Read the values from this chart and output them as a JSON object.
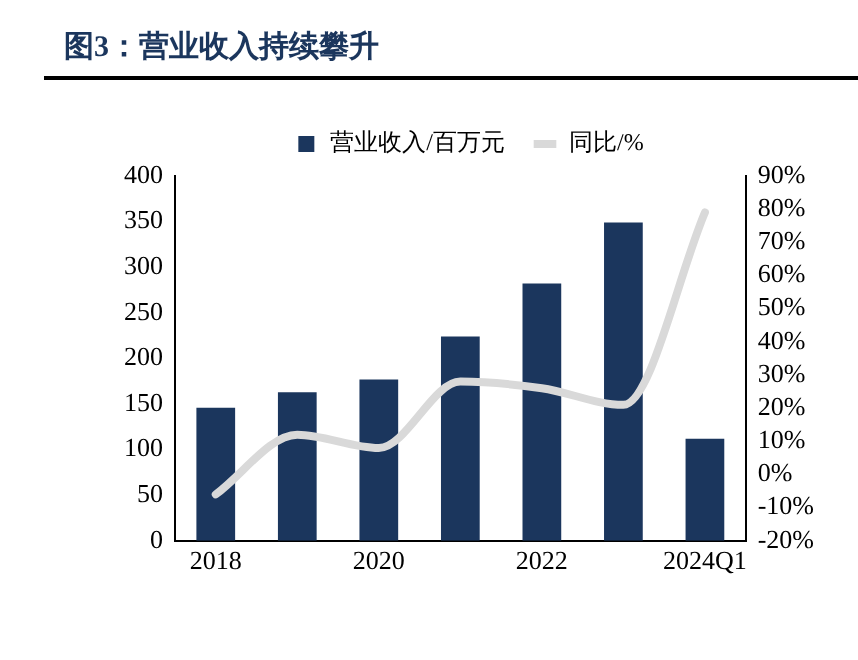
{
  "chart_data": {
    "type": "bar",
    "title": "图3：营业收入持续攀升",
    "categories": [
      "2018",
      null,
      "2020",
      null,
      "2022",
      null,
      "2024Q1"
    ],
    "series": [
      {
        "name": "营业收入/百万元",
        "color": "#1b365d",
        "values": [
          146,
          163,
          177,
          224,
          282,
          349,
          112
        ]
      },
      {
        "name": "同比/%",
        "type": "line",
        "axis": "y2",
        "color": "#d9d9d9",
        "values": [
          -6,
          12,
          8,
          28,
          26,
          21,
          79
        ]
      }
    ],
    "ylim": [
      0,
      400
    ],
    "yticks": [
      0,
      50,
      100,
      150,
      200,
      250,
      300,
      350,
      400
    ],
    "y2lim": [
      -20,
      90
    ],
    "y2ticks": [
      {
        "value": -20,
        "label": "-20%"
      },
      {
        "value": -10,
        "label": "-10%"
      },
      {
        "value": 0,
        "label": "0%"
      },
      {
        "value": 10,
        "label": "10%"
      },
      {
        "value": 20,
        "label": "20%"
      },
      {
        "value": 30,
        "label": "30%"
      },
      {
        "value": 40,
        "label": "40%"
      },
      {
        "value": 50,
        "label": "50%"
      },
      {
        "value": 60,
        "label": "60%"
      },
      {
        "value": 70,
        "label": "70%"
      },
      {
        "value": 80,
        "label": "80%"
      },
      {
        "value": 90,
        "label": "90%"
      }
    ],
    "grid": false,
    "legend": "top",
    "marker": "none"
  }
}
